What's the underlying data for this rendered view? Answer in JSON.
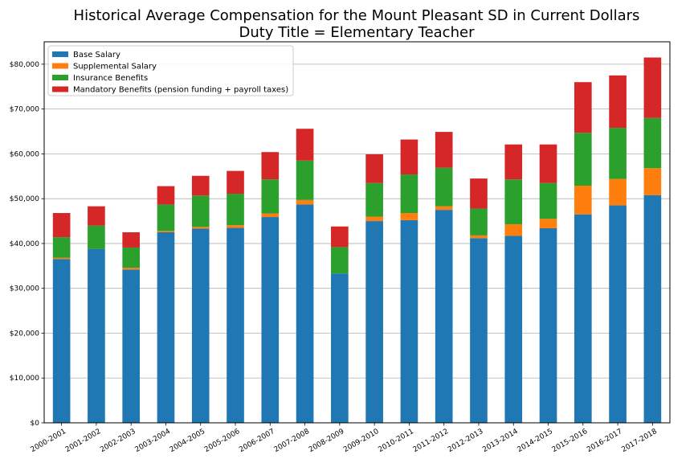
{
  "chart_data": {
    "type": "bar",
    "stacked": true,
    "title": "Historical Average Compensation for the Mount Pleasant SD in Current Dollars",
    "subtitle": "Duty Title = Elementary Teacher",
    "xlabel": "",
    "ylabel": "",
    "ylim": [
      0,
      85000
    ],
    "yticks": [
      0,
      10000,
      20000,
      30000,
      40000,
      50000,
      60000,
      70000,
      80000
    ],
    "ytick_labels": [
      "$0",
      "$10,000",
      "$20,000",
      "$30,000",
      "$40,000",
      "$50,000",
      "$60,000",
      "$70,000",
      "$80,000"
    ],
    "grid": "horizontal",
    "legend_position": "top-left",
    "categories": [
      "2000-2001",
      "2001-2002",
      "2002-2003",
      "2003-2004",
      "2004-2005",
      "2005-2006",
      "2006-2007",
      "2007-2008",
      "2008-2009",
      "2009-2010",
      "2010-2011",
      "2011-2012",
      "2012-2013",
      "2013-2014",
      "2014-2015",
      "2015-2016",
      "2016-2017",
      "2017-2018"
    ],
    "series": [
      {
        "name": "Base Salary",
        "color": "#1f77b4",
        "values": [
          36500,
          38800,
          34200,
          42500,
          43300,
          43500,
          45900,
          48700,
          33300,
          45000,
          45200,
          47500,
          41200,
          41700,
          43400,
          46500,
          48500,
          50800
        ]
      },
      {
        "name": "Supplemental Salary",
        "color": "#ff7f0e",
        "values": [
          300,
          0,
          400,
          300,
          400,
          600,
          800,
          1000,
          0,
          1000,
          1600,
          800,
          600,
          2600,
          2100,
          6400,
          5900,
          6000
        ]
      },
      {
        "name": "Insurance Benefits",
        "color": "#2ca02c",
        "values": [
          4600,
          5200,
          4500,
          5900,
          7000,
          7000,
          7600,
          8800,
          5900,
          7500,
          8600,
          8600,
          6000,
          10000,
          8000,
          11800,
          11400,
          11200
        ]
      },
      {
        "name": "Mandatory Benefits (pension funding + payroll taxes)",
        "color": "#d62728",
        "values": [
          5400,
          4300,
          3400,
          4100,
          4400,
          5100,
          6100,
          7100,
          4600,
          6400,
          7800,
          8000,
          6700,
          7800,
          8600,
          11300,
          11700,
          13500
        ]
      }
    ]
  }
}
